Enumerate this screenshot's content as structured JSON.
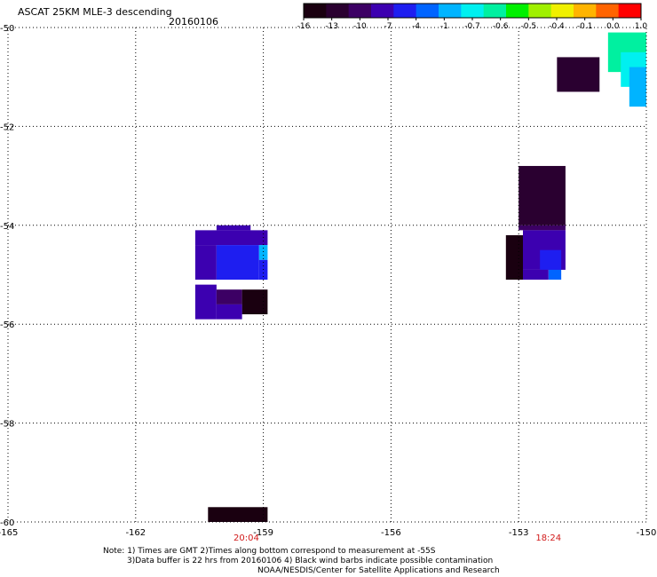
{
  "header": {
    "title": "ASCAT 25KM MLE-3 descending",
    "date": "20160106"
  },
  "colorbar": {
    "tick_labels": [
      "-16",
      "-13",
      "-10",
      "-7",
      "-4",
      "-1",
      "-0.7",
      "-0.6",
      "-0.5",
      "-0.4",
      "-0.1",
      "0.0",
      "1.0"
    ],
    "colors": [
      "#1a0010",
      "#2a0030",
      "#3c0064",
      "#3c00b0",
      "#1e1ef0",
      "#0064ff",
      "#00b4ff",
      "#00f0f0",
      "#00f0a0",
      "#00f000",
      "#a0f000",
      "#f0f000",
      "#ffb400",
      "#ff6400",
      "#ff0000"
    ]
  },
  "map": {
    "lon_range": [
      -165,
      -150
    ],
    "lat_range": [
      -60,
      -50
    ],
    "x_tick_labels": [
      "-165",
      "-162",
      "-159",
      "-156",
      "-153",
      "-150"
    ],
    "y_tick_labels": [
      "-50",
      "-52",
      "-54",
      "-56",
      "-58",
      "-60"
    ],
    "pass_times": [
      {
        "label": "20:04",
        "lon": -159.4,
        "color": "#d11a1a"
      },
      {
        "label": "18:24",
        "lon": -152.3,
        "color": "#d11a1a"
      }
    ],
    "cells": [
      {
        "lon": [
          -160.1,
          -159.3
        ],
        "lat": [
          -54.0,
          -54.1
        ],
        "color": "#3c00b0"
      },
      {
        "lon": [
          -160.6,
          -158.9
        ],
        "lat": [
          -54.1,
          -54.4
        ],
        "color": "#3c00b0"
      },
      {
        "lon": [
          -160.6,
          -160.1
        ],
        "lat": [
          -54.4,
          -55.1
        ],
        "color": "#3c00b0"
      },
      {
        "lon": [
          -160.1,
          -159.1
        ],
        "lat": [
          -54.4,
          -55.1
        ],
        "color": "#1e1ef0"
      },
      {
        "lon": [
          -159.1,
          -158.9
        ],
        "lat": [
          -54.4,
          -54.7
        ],
        "color": "#00b4ff"
      },
      {
        "lon": [
          -159.1,
          -158.9
        ],
        "lat": [
          -54.7,
          -55.1
        ],
        "color": "#1e1ef0"
      },
      {
        "lon": [
          -160.6,
          -160.1
        ],
        "lat": [
          -55.2,
          -55.9
        ],
        "color": "#3c00b0"
      },
      {
        "lon": [
          -160.1,
          -159.5
        ],
        "lat": [
          -55.3,
          -55.6
        ],
        "color": "#3c0064"
      },
      {
        "lon": [
          -159.5,
          -158.9
        ],
        "lat": [
          -55.3,
          -55.8
        ],
        "color": "#1a0010"
      },
      {
        "lon": [
          -160.1,
          -159.5
        ],
        "lat": [
          -55.6,
          -55.9
        ],
        "color": "#3c00b0"
      },
      {
        "lon": [
          -160.3,
          -158.9
        ],
        "lat": [
          -59.7,
          -60.0
        ],
        "color": "#1a0010"
      },
      {
        "lon": [
          -153.0,
          -151.9
        ],
        "lat": [
          -52.8,
          -54.0
        ],
        "color": "#2a0030"
      },
      {
        "lon": [
          -153.0,
          -151.9
        ],
        "lat": [
          -54.0,
          -54.1
        ],
        "color": "#3c0064"
      },
      {
        "lon": [
          -153.3,
          -152.9
        ],
        "lat": [
          -54.2,
          -55.1
        ],
        "color": "#1a0010"
      },
      {
        "lon": [
          -152.9,
          -151.9
        ],
        "lat": [
          -54.1,
          -54.9
        ],
        "color": "#3c00b0"
      },
      {
        "lon": [
          -152.5,
          -152.0
        ],
        "lat": [
          -54.5,
          -54.9
        ],
        "color": "#1e1ef0"
      },
      {
        "lon": [
          -152.3,
          -152.0
        ],
        "lat": [
          -54.9,
          -55.1
        ],
        "color": "#0064ff"
      },
      {
        "lon": [
          -152.9,
          -152.3
        ],
        "lat": [
          -54.9,
          -55.1
        ],
        "color": "#3c00b0"
      },
      {
        "lon": [
          -152.1,
          -151.1
        ],
        "lat": [
          -50.6,
          -51.3
        ],
        "color": "#2a0030"
      },
      {
        "lon": [
          -150.9,
          -150.0
        ],
        "lat": [
          -50.1,
          -50.9
        ],
        "color": "#00f0a0"
      },
      {
        "lon": [
          -150.6,
          -150.0
        ],
        "lat": [
          -50.5,
          -51.2
        ],
        "color": "#00f0f0"
      },
      {
        "lon": [
          -150.4,
          -150.0
        ],
        "lat": [
          -50.8,
          -51.6
        ],
        "color": "#00b4ff"
      },
      {
        "lon": [
          -150.0,
          -150.0
        ],
        "lat": [
          -50.0,
          -50.0
        ],
        "color": "#ffffff"
      }
    ]
  },
  "footer": {
    "line1": "Note: 1) Times are GMT 2)Times along bottom correspond to measurement at -55S",
    "line2": "3)Data buffer is 22 hrs from 20160106 4) Black wind barbs indicate possible contamination",
    "line3": "NOAA/NESDIS/Center for Satellite Applications and Research"
  }
}
